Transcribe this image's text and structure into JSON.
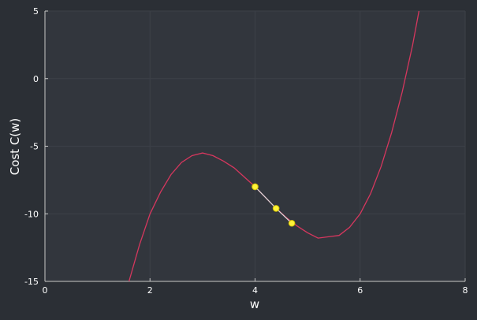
{
  "colors": {
    "figure_background": "#2b2f35",
    "plot_background": "#32363d",
    "curve": "#d6375e",
    "axis": "#c8c8c8",
    "grid": "#3c4048",
    "step_line": "#d9d9d9",
    "point_fill": "#fff23a",
    "point_edge": "#d4c400"
  },
  "chart_data": {
    "type": "line",
    "title": "",
    "xlabel": "w",
    "ylabel": "Cost C(w)",
    "xlim": [
      0,
      8
    ],
    "ylim": [
      -15,
      5
    ],
    "xticks": [
      "0",
      "2",
      "4",
      "6",
      "8"
    ],
    "yticks": [
      "5",
      "0",
      "-5",
      "-10",
      "-15"
    ],
    "grid": true,
    "series": [
      {
        "kind": "curve",
        "x": [
          1.6,
          1.8,
          2.0,
          2.2,
          2.4,
          2.6,
          2.8,
          3.0,
          3.2,
          3.4,
          3.6,
          3.8,
          4.0,
          4.2,
          4.4,
          4.6,
          4.8,
          5.0,
          5.2,
          5.4,
          5.6,
          5.8,
          6.0,
          6.2,
          6.4,
          6.6,
          6.8,
          7.0,
          7.12
        ],
        "y": [
          -15.0,
          -12.3,
          -10.0,
          -8.4,
          -7.1,
          -6.2,
          -5.7,
          -5.5,
          -5.7,
          -6.1,
          -6.6,
          -7.3,
          -8.0,
          -8.8,
          -9.6,
          -10.3,
          -10.9,
          -11.4,
          -11.8,
          -11.7,
          -11.6,
          -11.0,
          -10.0,
          -8.5,
          -6.5,
          -4.0,
          -1.0,
          2.5,
          5.0
        ]
      },
      {
        "kind": "steps",
        "x": [
          4.0,
          4.4,
          4.7
        ],
        "y": [
          -8.0,
          -9.6,
          -10.7
        ]
      }
    ]
  }
}
